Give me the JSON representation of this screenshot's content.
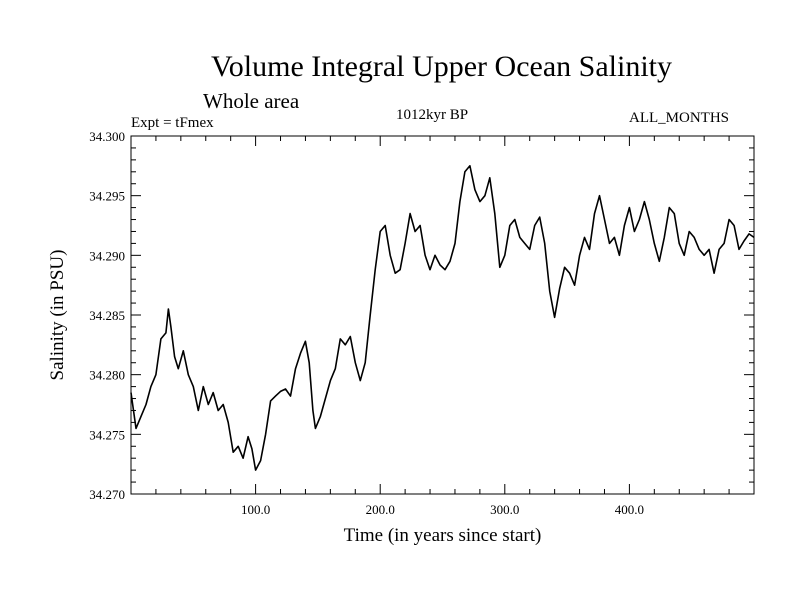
{
  "header": {
    "title": "Volume Integral Upper Ocean Salinity",
    "subtitle": "Whole area",
    "experiment": "Expt = tFmex",
    "period": "1012kyr BP",
    "months": "ALL_MONTHS"
  },
  "chart_data": {
    "type": "line",
    "title": "Volume Integral Upper Ocean Salinity",
    "xlabel": "Time (in years since start)",
    "ylabel": "Salinity (in PSU)",
    "xlim": [
      0,
      500
    ],
    "ylim": [
      34.27,
      34.3
    ],
    "x_ticks": [
      100,
      200,
      300,
      400
    ],
    "x_tick_labels": [
      "100.0",
      "200.0",
      "300.0",
      "400.0"
    ],
    "y_ticks": [
      34.27,
      34.275,
      34.28,
      34.285,
      34.29,
      34.295,
      34.3
    ],
    "y_tick_labels": [
      "34.270",
      "34.275",
      "34.280",
      "34.285",
      "34.290",
      "34.295",
      "34.300"
    ],
    "grid": false,
    "series": [
      {
        "name": "Salinity",
        "color": "#000000",
        "points": [
          [
            0,
            34.2785
          ],
          [
            4,
            34.2755
          ],
          [
            8,
            34.2765
          ],
          [
            12,
            34.2775
          ],
          [
            16,
            34.279
          ],
          [
            20,
            34.28
          ],
          [
            24,
            34.283
          ],
          [
            28,
            34.2835
          ],
          [
            30,
            34.2855
          ],
          [
            32,
            34.284
          ],
          [
            35,
            34.2815
          ],
          [
            38,
            34.2805
          ],
          [
            42,
            34.282
          ],
          [
            46,
            34.28
          ],
          [
            50,
            34.279
          ],
          [
            54,
            34.277
          ],
          [
            58,
            34.279
          ],
          [
            62,
            34.2775
          ],
          [
            66,
            34.2785
          ],
          [
            70,
            34.277
          ],
          [
            74,
            34.2775
          ],
          [
            78,
            34.276
          ],
          [
            82,
            34.2735
          ],
          [
            86,
            34.274
          ],
          [
            90,
            34.273
          ],
          [
            94,
            34.2748
          ],
          [
            97,
            34.2738
          ],
          [
            100,
            34.272
          ],
          [
            104,
            34.2728
          ],
          [
            108,
            34.275
          ],
          [
            112,
            34.2778
          ],
          [
            116,
            34.2782
          ],
          [
            120,
            34.2786
          ],
          [
            124,
            34.2788
          ],
          [
            128,
            34.2782
          ],
          [
            132,
            34.2805
          ],
          [
            136,
            34.2818
          ],
          [
            140,
            34.2828
          ],
          [
            143,
            34.281
          ],
          [
            146,
            34.277
          ],
          [
            148,
            34.2755
          ],
          [
            152,
            34.2765
          ],
          [
            156,
            34.278
          ],
          [
            160,
            34.2795
          ],
          [
            164,
            34.2805
          ],
          [
            168,
            34.283
          ],
          [
            172,
            34.2825
          ],
          [
            176,
            34.2832
          ],
          [
            180,
            34.281
          ],
          [
            184,
            34.2795
          ],
          [
            188,
            34.281
          ],
          [
            192,
            34.285
          ],
          [
            196,
            34.2888
          ],
          [
            200,
            34.292
          ],
          [
            204,
            34.2925
          ],
          [
            208,
            34.29
          ],
          [
            212,
            34.2885
          ],
          [
            216,
            34.2888
          ],
          [
            220,
            34.291
          ],
          [
            224,
            34.2935
          ],
          [
            228,
            34.292
          ],
          [
            232,
            34.2925
          ],
          [
            236,
            34.29
          ],
          [
            240,
            34.2888
          ],
          [
            244,
            34.29
          ],
          [
            248,
            34.2892
          ],
          [
            252,
            34.2888
          ],
          [
            256,
            34.2895
          ],
          [
            260,
            34.291
          ],
          [
            264,
            34.2945
          ],
          [
            268,
            34.297
          ],
          [
            272,
            34.2975
          ],
          [
            276,
            34.2955
          ],
          [
            280,
            34.2945
          ],
          [
            284,
            34.295
          ],
          [
            288,
            34.2965
          ],
          [
            292,
            34.2935
          ],
          [
            296,
            34.289
          ],
          [
            300,
            34.29
          ],
          [
            304,
            34.2925
          ],
          [
            308,
            34.293
          ],
          [
            312,
            34.2915
          ],
          [
            316,
            34.291
          ],
          [
            320,
            34.2905
          ],
          [
            324,
            34.2925
          ],
          [
            328,
            34.2932
          ],
          [
            332,
            34.291
          ],
          [
            336,
            34.287
          ],
          [
            340,
            34.2848
          ],
          [
            344,
            34.2872
          ],
          [
            348,
            34.289
          ],
          [
            352,
            34.2885
          ],
          [
            356,
            34.2875
          ],
          [
            360,
            34.29
          ],
          [
            364,
            34.2915
          ],
          [
            368,
            34.2905
          ],
          [
            372,
            34.2935
          ],
          [
            376,
            34.295
          ],
          [
            380,
            34.293
          ],
          [
            384,
            34.291
          ],
          [
            388,
            34.2915
          ],
          [
            392,
            34.29
          ],
          [
            396,
            34.2925
          ],
          [
            400,
            34.294
          ],
          [
            404,
            34.292
          ],
          [
            408,
            34.293
          ],
          [
            412,
            34.2945
          ],
          [
            416,
            34.293
          ],
          [
            420,
            34.291
          ],
          [
            424,
            34.2895
          ],
          [
            428,
            34.2915
          ],
          [
            432,
            34.294
          ],
          [
            436,
            34.2935
          ],
          [
            440,
            34.291
          ],
          [
            444,
            34.29
          ],
          [
            448,
            34.292
          ],
          [
            452,
            34.2915
          ],
          [
            456,
            34.2905
          ],
          [
            460,
            34.29
          ],
          [
            464,
            34.2905
          ],
          [
            468,
            34.2885
          ],
          [
            472,
            34.2905
          ],
          [
            476,
            34.291
          ],
          [
            480,
            34.293
          ],
          [
            484,
            34.2925
          ],
          [
            488,
            34.2905
          ],
          [
            492,
            34.2912
          ],
          [
            496,
            34.2918
          ],
          [
            500,
            34.2915
          ]
        ]
      }
    ]
  }
}
